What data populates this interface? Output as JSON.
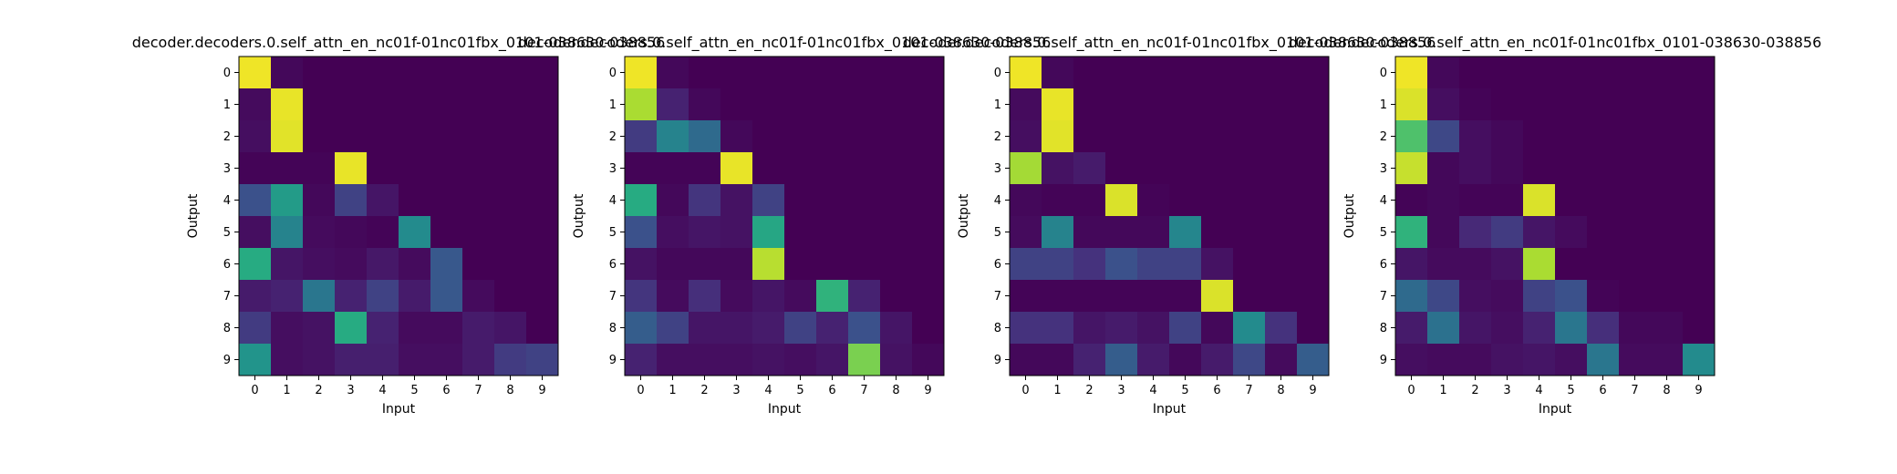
{
  "chart_data": [
    {
      "type": "heatmap",
      "title": "decoder.decoders.0.self_attn_en_nc01f-01nc01fbx_0101-038630-038856",
      "xlabel": "Input",
      "ylabel": "Output",
      "x_ticks": [
        "0",
        "1",
        "2",
        "3",
        "4",
        "5",
        "6",
        "7",
        "8",
        "9"
      ],
      "y_ticks": [
        "0",
        "1",
        "2",
        "3",
        "4",
        "5",
        "6",
        "7",
        "8",
        "9"
      ],
      "colormap": "viridis",
      "value_range": [
        0,
        1
      ],
      "values": [
        [
          0.98,
          0.02,
          0.0,
          0.0,
          0.0,
          0.0,
          0.0,
          0.0,
          0.0,
          0.0
        ],
        [
          0.03,
          0.97,
          0.0,
          0.0,
          0.0,
          0.0,
          0.0,
          0.0,
          0.0,
          0.0
        ],
        [
          0.04,
          0.96,
          0.0,
          0.0,
          0.0,
          0.0,
          0.0,
          0.0,
          0.0,
          0.0
        ],
        [
          0.01,
          0.01,
          0.01,
          0.97,
          0.0,
          0.0,
          0.0,
          0.0,
          0.0,
          0.0
        ],
        [
          0.25,
          0.55,
          0.02,
          0.2,
          0.06,
          0.0,
          0.0,
          0.0,
          0.0,
          0.0
        ],
        [
          0.04,
          0.45,
          0.03,
          0.02,
          0.01,
          0.48,
          0.0,
          0.0,
          0.0,
          0.0
        ],
        [
          0.62,
          0.06,
          0.04,
          0.03,
          0.07,
          0.03,
          0.28,
          0.0,
          0.0,
          0.0
        ],
        [
          0.08,
          0.1,
          0.4,
          0.1,
          0.2,
          0.08,
          0.28,
          0.03,
          0.0,
          0.0
        ],
        [
          0.18,
          0.04,
          0.05,
          0.62,
          0.1,
          0.03,
          0.03,
          0.08,
          0.06,
          0.0
        ],
        [
          0.52,
          0.04,
          0.05,
          0.09,
          0.09,
          0.04,
          0.04,
          0.08,
          0.18,
          0.2
        ]
      ]
    },
    {
      "type": "heatmap",
      "title": "decoder.decoders.0.self_attn_en_nc01f-01nc01fbx_0101-038630-038856",
      "xlabel": "Input",
      "ylabel": "Output",
      "x_ticks": [
        "0",
        "1",
        "2",
        "3",
        "4",
        "5",
        "6",
        "7",
        "8",
        "9"
      ],
      "y_ticks": [
        "0",
        "1",
        "2",
        "3",
        "4",
        "5",
        "6",
        "7",
        "8",
        "9"
      ],
      "colormap": "viridis",
      "value_range": [
        0,
        1
      ],
      "values": [
        [
          0.98,
          0.02,
          0.0,
          0.0,
          0.0,
          0.0,
          0.0,
          0.0,
          0.0,
          0.0
        ],
        [
          0.88,
          0.1,
          0.02,
          0.0,
          0.0,
          0.0,
          0.0,
          0.0,
          0.0,
          0.0
        ],
        [
          0.18,
          0.45,
          0.35,
          0.02,
          0.0,
          0.0,
          0.0,
          0.0,
          0.0,
          0.0
        ],
        [
          0.01,
          0.01,
          0.01,
          0.97,
          0.0,
          0.0,
          0.0,
          0.0,
          0.0,
          0.0
        ],
        [
          0.62,
          0.02,
          0.16,
          0.05,
          0.2,
          0.0,
          0.0,
          0.0,
          0.0,
          0.0
        ],
        [
          0.25,
          0.04,
          0.06,
          0.05,
          0.6,
          0.0,
          0.0,
          0.0,
          0.0,
          0.0
        ],
        [
          0.05,
          0.02,
          0.02,
          0.02,
          0.9,
          0.0,
          0.0,
          0.0,
          0.0,
          0.0
        ],
        [
          0.16,
          0.03,
          0.14,
          0.03,
          0.06,
          0.03,
          0.65,
          0.1,
          0.0,
          0.0
        ],
        [
          0.3,
          0.2,
          0.06,
          0.06,
          0.08,
          0.2,
          0.1,
          0.25,
          0.06,
          0.0
        ],
        [
          0.1,
          0.04,
          0.04,
          0.04,
          0.05,
          0.04,
          0.06,
          0.8,
          0.05,
          0.02
        ]
      ]
    },
    {
      "type": "heatmap",
      "title": "decoder.decoders.0.self_attn_en_nc01f-01nc01fbx_0101-038630-038856",
      "xlabel": "Input",
      "ylabel": "Output",
      "x_ticks": [
        "0",
        "1",
        "2",
        "3",
        "4",
        "5",
        "6",
        "7",
        "8",
        "9"
      ],
      "y_ticks": [
        "0",
        "1",
        "2",
        "3",
        "4",
        "5",
        "6",
        "7",
        "8",
        "9"
      ],
      "colormap": "viridis",
      "value_range": [
        0,
        1
      ],
      "values": [
        [
          0.98,
          0.02,
          0.0,
          0.0,
          0.0,
          0.0,
          0.0,
          0.0,
          0.0,
          0.0
        ],
        [
          0.03,
          0.97,
          0.0,
          0.0,
          0.0,
          0.0,
          0.0,
          0.0,
          0.0,
          0.0
        ],
        [
          0.04,
          0.96,
          0.0,
          0.0,
          0.0,
          0.0,
          0.0,
          0.0,
          0.0,
          0.0
        ],
        [
          0.87,
          0.05,
          0.08,
          0.0,
          0.0,
          0.0,
          0.0,
          0.0,
          0.0,
          0.0
        ],
        [
          0.02,
          0.01,
          0.01,
          0.95,
          0.01,
          0.0,
          0.0,
          0.0,
          0.0,
          0.0
        ],
        [
          0.03,
          0.45,
          0.02,
          0.02,
          0.02,
          0.46,
          0.0,
          0.0,
          0.0,
          0.0
        ],
        [
          0.2,
          0.2,
          0.15,
          0.25,
          0.2,
          0.2,
          0.05,
          0.0,
          0.0,
          0.0
        ],
        [
          0.01,
          0.01,
          0.01,
          0.01,
          0.01,
          0.01,
          0.95,
          0.0,
          0.0,
          0.0
        ],
        [
          0.15,
          0.15,
          0.06,
          0.08,
          0.05,
          0.2,
          0.02,
          0.48,
          0.15,
          0.0
        ],
        [
          0.02,
          0.02,
          0.1,
          0.3,
          0.08,
          0.02,
          0.08,
          0.22,
          0.03,
          0.3
        ]
      ]
    },
    {
      "type": "heatmap",
      "title": "decoder.decoders.0.self_attn_en_nc01f-01nc01fbx_0101-038630-038856",
      "xlabel": "Input",
      "ylabel": "Output",
      "x_ticks": [
        "0",
        "1",
        "2",
        "3",
        "4",
        "5",
        "6",
        "7",
        "8",
        "9"
      ],
      "y_ticks": [
        "0",
        "1",
        "2",
        "3",
        "4",
        "5",
        "6",
        "7",
        "8",
        "9"
      ],
      "colormap": "viridis",
      "value_range": [
        0,
        1
      ],
      "values": [
        [
          0.98,
          0.02,
          0.0,
          0.0,
          0.0,
          0.0,
          0.0,
          0.0,
          0.0,
          0.0
        ],
        [
          0.95,
          0.04,
          0.01,
          0.0,
          0.0,
          0.0,
          0.0,
          0.0,
          0.0,
          0.0
        ],
        [
          0.72,
          0.22,
          0.04,
          0.02,
          0.0,
          0.0,
          0.0,
          0.0,
          0.0,
          0.0
        ],
        [
          0.92,
          0.02,
          0.04,
          0.02,
          0.0,
          0.0,
          0.0,
          0.0,
          0.0,
          0.0
        ],
        [
          0.01,
          0.02,
          0.01,
          0.01,
          0.95,
          0.0,
          0.0,
          0.0,
          0.0,
          0.0
        ],
        [
          0.65,
          0.02,
          0.12,
          0.18,
          0.06,
          0.03,
          0.0,
          0.0,
          0.0,
          0.0
        ],
        [
          0.06,
          0.03,
          0.03,
          0.05,
          0.88,
          0.0,
          0.0,
          0.0,
          0.0,
          0.0
        ],
        [
          0.35,
          0.22,
          0.04,
          0.03,
          0.2,
          0.25,
          0.01,
          0.0,
          0.0,
          0.0
        ],
        [
          0.08,
          0.38,
          0.06,
          0.04,
          0.1,
          0.4,
          0.14,
          0.02,
          0.02,
          0.0
        ],
        [
          0.04,
          0.03,
          0.03,
          0.05,
          0.06,
          0.04,
          0.4,
          0.03,
          0.03,
          0.48
        ]
      ]
    }
  ]
}
